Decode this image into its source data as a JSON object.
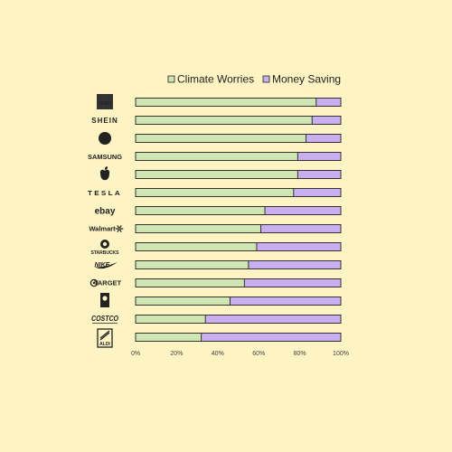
{
  "colors": {
    "background": "#fdf3c3",
    "climate": "#cfe5b2",
    "money": "#c9aef0",
    "stroke": "#222222"
  },
  "chart_data": {
    "type": "bar",
    "orientation": "horizontal",
    "stacked": true,
    "title": "",
    "xlabel": "",
    "ylabel": "",
    "xlim": [
      0,
      100
    ],
    "x_ticks": [
      "0%",
      "20%",
      "40%",
      "60%",
      "80%",
      "100%"
    ],
    "legend_position": "top-right",
    "grid": false,
    "categories": [
      "Temu",
      "SHEIN",
      "HP",
      "SAMSUNG",
      "Apple",
      "TESLA",
      "ebay",
      "Walmart",
      "STARBUCKS",
      "NIKE",
      "TARGET",
      "Goodwill",
      "COSTCO",
      "ALDI"
    ],
    "category_logos": [
      {
        "icon": "temu-logo",
        "text": "TEMU"
      },
      {
        "icon": "shein-logo",
        "text": "SHEIN"
      },
      {
        "icon": "hp-logo",
        "text": "hp"
      },
      {
        "icon": "samsung-logo",
        "text": "SAMSUNG"
      },
      {
        "icon": "apple-logo",
        "text": ""
      },
      {
        "icon": "tesla-logo",
        "text": "TESLA"
      },
      {
        "icon": "ebay-logo",
        "text": "ebay"
      },
      {
        "icon": "walmart-logo",
        "text": "Walmart"
      },
      {
        "icon": "starbucks-logo",
        "text": "STARBUCKS"
      },
      {
        "icon": "nike-logo",
        "text": "NIKE"
      },
      {
        "icon": "target-logo",
        "text": "TARGET"
      },
      {
        "icon": "goodwill-logo",
        "text": ""
      },
      {
        "icon": "costco-logo",
        "text": "COSTCO"
      },
      {
        "icon": "aldi-logo",
        "text": "ALDI"
      }
    ],
    "series": [
      {
        "name": "Climate Worries",
        "values": [
          88,
          86,
          83,
          79,
          79,
          77,
          63,
          61,
          59,
          55,
          53,
          46,
          34,
          32
        ]
      },
      {
        "name": "Money Saving",
        "values": [
          12,
          14,
          17,
          21,
          21,
          23,
          37,
          39,
          41,
          45,
          47,
          54,
          66,
          68
        ]
      }
    ]
  }
}
